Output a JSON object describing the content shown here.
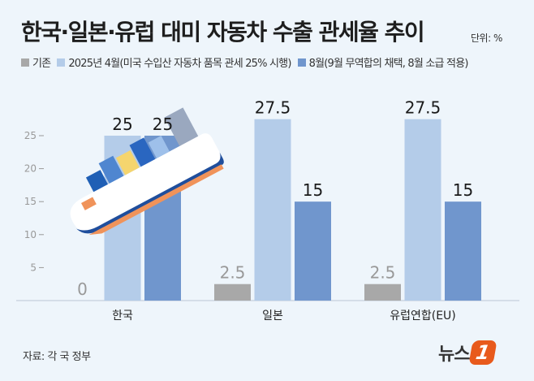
{
  "chart_data": {
    "type": "bar",
    "title": "한국·일본·유럽 대미 자동차 수출 관세율 추이",
    "unit": "단위: %",
    "categories": [
      "한국",
      "일본",
      "유럽연합(EU)"
    ],
    "series": [
      {
        "name": "기존",
        "color": "#a8a8a8",
        "values": [
          0,
          2.5,
          2.5
        ],
        "labels": [
          "0",
          "2.5",
          "2.5"
        ]
      },
      {
        "name": "2025년 4월(미국 수입산 자동차 품목 관세 25% 시행)",
        "color": "#b4cce9",
        "values": [
          25,
          27.5,
          27.5
        ],
        "labels": [
          "25",
          "27.5",
          "27.5"
        ]
      },
      {
        "name": "8월(9월 무역합의 채택, 8월 소급 적용)",
        "color": "#7096cd",
        "values": [
          25,
          15,
          15
        ],
        "labels": [
          "25",
          "15",
          "15"
        ]
      }
    ],
    "yticks": [
      "5",
      "10",
      "15",
      "20",
      "25"
    ],
    "ylim": [
      0,
      30
    ],
    "grid": false,
    "legend": "top"
  },
  "source": "자료: 각 국 정부",
  "logo": {
    "text": "뉴스",
    "mark": "1"
  }
}
